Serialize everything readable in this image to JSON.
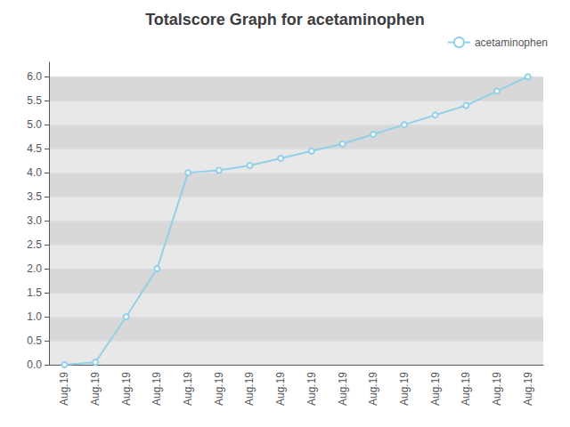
{
  "chart_data": {
    "type": "line",
    "title": "Totalscore Graph for acetaminophen",
    "categories": [
      "Aug.19",
      "Aug.19",
      "Aug.19",
      "Aug.19",
      "Aug.19",
      "Aug.19",
      "Aug.19",
      "Aug.19",
      "Aug.19",
      "Aug.19",
      "Aug.19",
      "Aug.19",
      "Aug.19",
      "Aug.19",
      "Aug.19",
      "Aug.19"
    ],
    "series": [
      {
        "name": "acetaminophen",
        "color": "#92d0e8",
        "values": [
          0.0,
          0.05,
          1.0,
          2.0,
          4.0,
          4.05,
          4.15,
          4.3,
          4.45,
          4.6,
          4.8,
          5.0,
          5.2,
          5.4,
          5.7,
          6.0
        ]
      }
    ],
    "ylim": [
      0.0,
      6.3
    ],
    "yticks": [
      {
        "value": 0.0,
        "label": "0.0"
      },
      0.5,
      {
        "value": 1.0,
        "label": "1.0"
      },
      1.5,
      {
        "value": 2.0,
        "label": "2.0"
      },
      2.5,
      {
        "value": 3.0,
        "label": "3.0"
      },
      3.5,
      {
        "value": 4.0,
        "label": "4.0"
      },
      4.5,
      {
        "value": 5.0,
        "label": "5.0"
      },
      5.5,
      {
        "value": 6.0,
        "label": "6.0"
      }
    ],
    "grid": true,
    "legend": "upper right"
  }
}
